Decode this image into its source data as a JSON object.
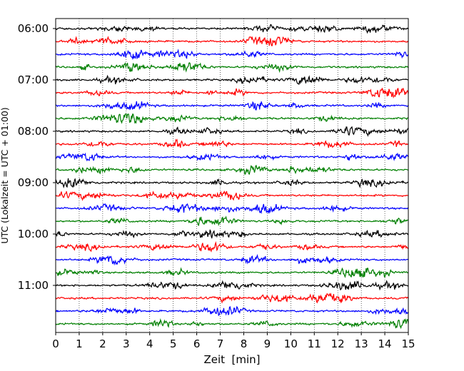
{
  "chart_data": {
    "type": "line",
    "title": "",
    "xlabel": "Zeit  [min]",
    "ylabel": "UTC (Lokalzeit = UTC + 01:00)",
    "xlim": [
      0,
      15
    ],
    "x_ticks": [
      "0",
      "1",
      "2",
      "3",
      "4",
      "5",
      "6",
      "7",
      "8",
      "9",
      "10",
      "11",
      "12",
      "13",
      "14",
      "15"
    ],
    "y_ticks": [
      "06:00",
      "07:00",
      "08:00",
      "09:00",
      "10:00",
      "11:00"
    ],
    "grid": "vertical dotted lines at each minute",
    "legend": "none",
    "trace_interval_min": 15,
    "first_trace": "06:00",
    "trace_colors": [
      "#000000",
      "#ff0000",
      "#0000ff",
      "#007f00"
    ],
    "series": [
      {
        "start": "06:00"
      },
      {
        "start": "06:15"
      },
      {
        "start": "06:30"
      },
      {
        "start": "06:45"
      },
      {
        "start": "07:00"
      },
      {
        "start": "07:15"
      },
      {
        "start": "07:30"
      },
      {
        "start": "07:45"
      },
      {
        "start": "08:00"
      },
      {
        "start": "08:15"
      },
      {
        "start": "08:30"
      },
      {
        "start": "08:45"
      },
      {
        "start": "09:00"
      },
      {
        "start": "09:15"
      },
      {
        "start": "09:30"
      },
      {
        "start": "09:45"
      },
      {
        "start": "10:00"
      },
      {
        "start": "10:15"
      },
      {
        "start": "10:30"
      },
      {
        "start": "10:45"
      },
      {
        "start": "11:00"
      },
      {
        "start": "11:15"
      },
      {
        "start": "11:30"
      },
      {
        "start": "11:45"
      }
    ]
  }
}
